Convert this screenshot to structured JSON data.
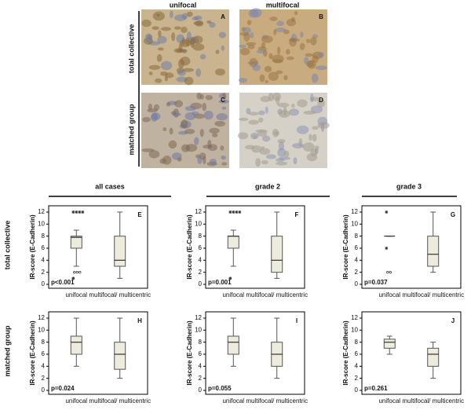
{
  "images": {
    "column_headers": [
      "unifocal",
      "multifocal"
    ],
    "row_labels": [
      "total collective",
      "matched group"
    ],
    "panels": [
      {
        "label": "A"
      },
      {
        "label": "B"
      },
      {
        "label": "C"
      },
      {
        "label": "D"
      }
    ]
  },
  "box_columns": [
    "all cases",
    "grade 2",
    "grade 3"
  ],
  "box_rows": [
    "total collective",
    "matched group"
  ],
  "chart_data": [
    {
      "type": "box",
      "label": "E",
      "ylabel": "IR-score (E-Cadherin)",
      "annotation": "p<0.001",
      "categories": [
        "unifocal",
        "multifocal/ multicentric"
      ],
      "color": "#ecebdc",
      "ylim": [
        0,
        12
      ],
      "yticks": [
        0,
        2,
        4,
        6,
        8,
        10,
        12
      ],
      "boxes": [
        {
          "min": 3,
          "q1": 6,
          "median": 7.8,
          "q3": 8,
          "max": 9,
          "outliers": [
            2,
            2,
            2
          ],
          "extremes": [
            12,
            12,
            12,
            12,
            1
          ]
        },
        {
          "min": 1,
          "q1": 3,
          "median": 4,
          "q3": 8,
          "max": 12,
          "outliers": [],
          "extremes": []
        }
      ]
    },
    {
      "type": "box",
      "label": "F",
      "ylabel": "IR-score (E-Cadherin)",
      "annotation": "p=0.001",
      "categories": [
        "unifocal",
        "multifocal/ multicentric"
      ],
      "color": "#ecebdc",
      "ylim": [
        0,
        12
      ],
      "yticks": [
        0,
        2,
        4,
        6,
        8,
        10,
        12
      ],
      "boxes": [
        {
          "min": 3,
          "q1": 6,
          "median": 8,
          "q3": 8,
          "max": 9,
          "outliers": [],
          "extremes": [
            12,
            12,
            12,
            12,
            1
          ]
        },
        {
          "min": 1,
          "q1": 2,
          "median": 4,
          "q3": 8,
          "max": 12,
          "outliers": [],
          "extremes": []
        }
      ]
    },
    {
      "type": "box",
      "label": "G",
      "ylabel": "IR-score (E-Cadherin)",
      "annotation": "p=0.037",
      "categories": [
        "unifocal",
        "multifocal/ multicentric"
      ],
      "color": "#ecebdc",
      "ylim": [
        0,
        12
      ],
      "yticks": [
        0,
        2,
        4,
        6,
        8,
        10,
        12
      ],
      "boxes": [
        {
          "min": 8,
          "q1": 8,
          "median": 8,
          "q3": 8,
          "max": 8,
          "outliers": [
            2,
            2
          ],
          "extremes": [
            12,
            6
          ]
        },
        {
          "min": 2,
          "q1": 3,
          "median": 5,
          "q3": 8,
          "max": 12,
          "outliers": [],
          "extremes": []
        }
      ]
    },
    {
      "type": "box",
      "label": "H",
      "ylabel": "IR-score (E-Cadherin)",
      "annotation": "p=0.024",
      "categories": [
        "unifocal",
        "multifocal/ multicentric"
      ],
      "color": "#ecebdc",
      "ylim": [
        0,
        12
      ],
      "yticks": [
        0,
        2,
        4,
        6,
        8,
        10,
        12
      ],
      "boxes": [
        {
          "min": 4,
          "q1": 6,
          "median": 8,
          "q3": 9,
          "max": 12,
          "outliers": [],
          "extremes": []
        },
        {
          "min": 2,
          "q1": 3.5,
          "median": 6,
          "q3": 8,
          "max": 12,
          "outliers": [],
          "extremes": []
        }
      ]
    },
    {
      "type": "box",
      "label": "I",
      "ylabel": "IR-score (E-Cadherin)",
      "annotation": "p=0.055",
      "categories": [
        "unifocal",
        "multifocal/ multicentric"
      ],
      "color": "#ecebdc",
      "ylim": [
        0,
        12
      ],
      "yticks": [
        0,
        2,
        4,
        6,
        8,
        10,
        12
      ],
      "boxes": [
        {
          "min": 4,
          "q1": 6,
          "median": 8,
          "q3": 9,
          "max": 12,
          "outliers": [],
          "extremes": []
        },
        {
          "min": 2,
          "q1": 4,
          "median": 6,
          "q3": 8,
          "max": 12,
          "outliers": [],
          "extremes": []
        }
      ]
    },
    {
      "type": "box",
      "label": "J",
      "ylabel": "IR-score (E-Cadherin)",
      "annotation": "p=0.261",
      "categories": [
        "unifocal",
        "multifocal/ multicentric"
      ],
      "color": "#ecebdc",
      "ylim": [
        0,
        12
      ],
      "yticks": [
        0,
        2,
        4,
        6,
        8,
        10,
        12
      ],
      "boxes": [
        {
          "min": 6,
          "q1": 7,
          "median": 8,
          "q3": 8.5,
          "max": 9,
          "outliers": [],
          "extremes": []
        },
        {
          "min": 2,
          "q1": 4,
          "median": 6,
          "q3": 7,
          "max": 8,
          "outliers": [],
          "extremes": []
        }
      ]
    }
  ]
}
